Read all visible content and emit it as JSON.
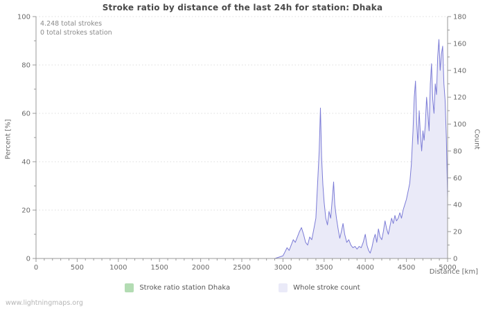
{
  "footer": {
    "watermark": "www.lightningmaps.org"
  },
  "legend": {
    "items": [
      {
        "label": "Stroke ratio station Dhaka"
      },
      {
        "label": "Whole stroke count"
      }
    ]
  },
  "colors": {
    "ratio_green": "#b3dcb3",
    "count_fill": "#eaeaf8",
    "count_line": "#7b7bd6",
    "axis": "#999999",
    "grid": "#dddddd",
    "tick_text": "#6a6a6a",
    "title_text": "#4a4a4a"
  },
  "chart_data": {
    "type": "area",
    "title": "Stroke ratio by distance of the last 24h for station: Dhaka",
    "xlabel": "Distance  [km]",
    "ylabel_left": "Percent  [%]",
    "ylabel_right": "Count",
    "annotations": [
      "4.248 total strokes",
      "0 total strokes station"
    ],
    "xlim": [
      0,
      5000
    ],
    "ylim_left": [
      0,
      100
    ],
    "ylim_right": [
      0,
      180
    ],
    "x_major_ticks": [
      0,
      500,
      1000,
      1500,
      2000,
      2500,
      3000,
      3500,
      4000,
      4500,
      5000
    ],
    "x_minor_step": 100,
    "y_left_ticks": [
      0,
      20,
      40,
      60,
      80,
      100
    ],
    "y_left_minor_step": 10,
    "y_right_ticks": [
      0,
      20,
      40,
      60,
      80,
      100,
      120,
      140,
      160,
      180
    ],
    "y_right_minor_step": 10,
    "grid": "horizontal-dotted",
    "legend_position": "bottom",
    "series": [
      {
        "name": "Stroke ratio station Dhaka",
        "axis": "left",
        "style": "flat-zero",
        "points": [
          [
            0,
            0
          ],
          [
            5000,
            0
          ]
        ]
      },
      {
        "name": "Whole stroke count",
        "axis": "right",
        "style": "area-line",
        "points": [
          [
            0,
            0
          ],
          [
            250,
            0
          ],
          [
            500,
            0
          ],
          [
            750,
            0
          ],
          [
            1000,
            0
          ],
          [
            1250,
            0
          ],
          [
            1500,
            0
          ],
          [
            1750,
            0
          ],
          [
            2000,
            0
          ],
          [
            2250,
            0
          ],
          [
            2500,
            0
          ],
          [
            2750,
            0
          ],
          [
            2900,
            0
          ],
          [
            2950,
            1
          ],
          [
            3000,
            2
          ],
          [
            3025,
            5
          ],
          [
            3050,
            8
          ],
          [
            3075,
            6
          ],
          [
            3100,
            10
          ],
          [
            3125,
            14
          ],
          [
            3150,
            12
          ],
          [
            3175,
            16
          ],
          [
            3200,
            20
          ],
          [
            3225,
            23
          ],
          [
            3250,
            18
          ],
          [
            3275,
            12
          ],
          [
            3300,
            10
          ],
          [
            3325,
            16
          ],
          [
            3350,
            14
          ],
          [
            3375,
            22
          ],
          [
            3400,
            30
          ],
          [
            3420,
            55
          ],
          [
            3440,
            80
          ],
          [
            3455,
            112
          ],
          [
            3470,
            75
          ],
          [
            3485,
            55
          ],
          [
            3500,
            42
          ],
          [
            3520,
            30
          ],
          [
            3540,
            25
          ],
          [
            3560,
            35
          ],
          [
            3580,
            30
          ],
          [
            3600,
            45
          ],
          [
            3615,
            57
          ],
          [
            3630,
            40
          ],
          [
            3650,
            30
          ],
          [
            3670,
            22
          ],
          [
            3690,
            15
          ],
          [
            3710,
            20
          ],
          [
            3730,
            26
          ],
          [
            3750,
            18
          ],
          [
            3775,
            12
          ],
          [
            3800,
            14
          ],
          [
            3825,
            10
          ],
          [
            3850,
            8
          ],
          [
            3875,
            9
          ],
          [
            3900,
            7
          ],
          [
            3925,
            9
          ],
          [
            3950,
            8
          ],
          [
            3975,
            12
          ],
          [
            4000,
            18
          ],
          [
            4020,
            10
          ],
          [
            4040,
            6
          ],
          [
            4060,
            4
          ],
          [
            4080,
            8
          ],
          [
            4100,
            14
          ],
          [
            4120,
            18
          ],
          [
            4140,
            12
          ],
          [
            4160,
            22
          ],
          [
            4180,
            16
          ],
          [
            4200,
            14
          ],
          [
            4220,
            20
          ],
          [
            4240,
            28
          ],
          [
            4260,
            22
          ],
          [
            4280,
            18
          ],
          [
            4300,
            24
          ],
          [
            4320,
            30
          ],
          [
            4340,
            26
          ],
          [
            4360,
            32
          ],
          [
            4380,
            28
          ],
          [
            4400,
            30
          ],
          [
            4420,
            34
          ],
          [
            4440,
            30
          ],
          [
            4460,
            36
          ],
          [
            4480,
            40
          ],
          [
            4500,
            44
          ],
          [
            4520,
            50
          ],
          [
            4540,
            56
          ],
          [
            4560,
            70
          ],
          [
            4580,
            95
          ],
          [
            4595,
            120
          ],
          [
            4610,
            132
          ],
          [
            4625,
            100
          ],
          [
            4640,
            85
          ],
          [
            4655,
            110
          ],
          [
            4670,
            92
          ],
          [
            4685,
            80
          ],
          [
            4700,
            95
          ],
          [
            4715,
            88
          ],
          [
            4730,
            100
          ],
          [
            4745,
            120
          ],
          [
            4760,
            108
          ],
          [
            4775,
            95
          ],
          [
            4790,
            130
          ],
          [
            4805,
            145
          ],
          [
            4820,
            118
          ],
          [
            4835,
            108
          ],
          [
            4850,
            130
          ],
          [
            4865,
            122
          ],
          [
            4880,
            150
          ],
          [
            4895,
            163
          ],
          [
            4910,
            140
          ],
          [
            4925,
            152
          ],
          [
            4940,
            158
          ],
          [
            4955,
            130
          ],
          [
            4970,
            118
          ],
          [
            4985,
            90
          ],
          [
            5000,
            45
          ]
        ]
      }
    ]
  }
}
